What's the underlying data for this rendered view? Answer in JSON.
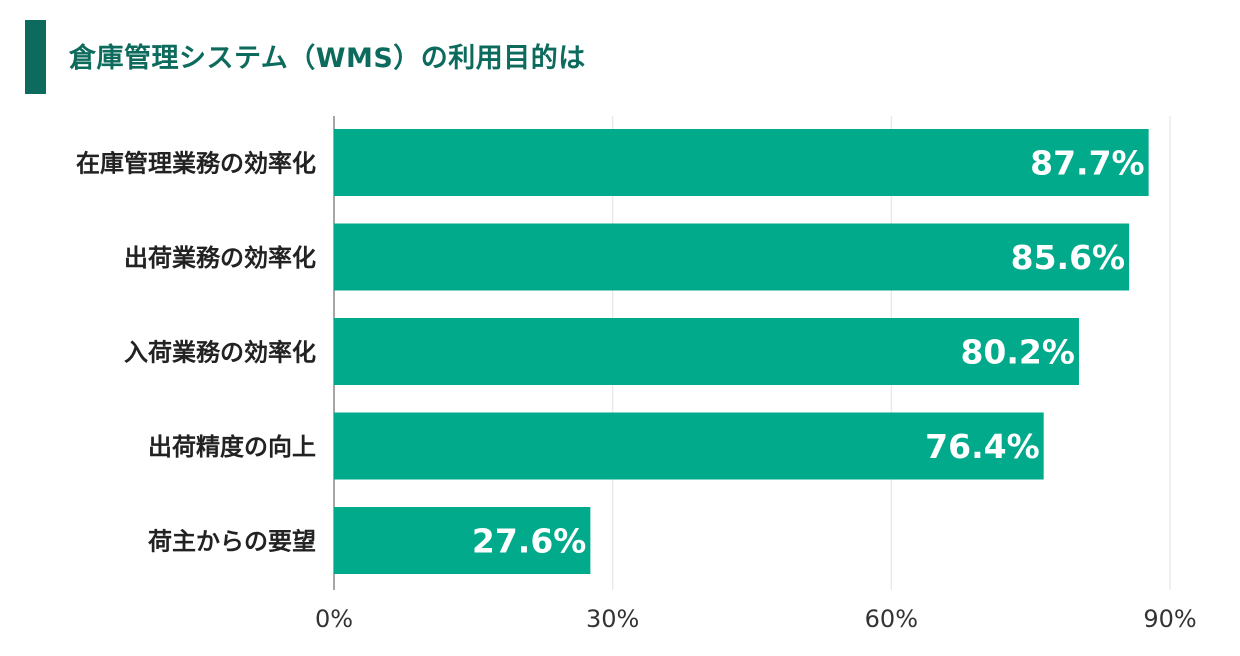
{
  "title": "倉庫管理システム（WMS）の利用目的は",
  "colors": {
    "title_bar": "#0d6b5e",
    "title_text": "#0d6b5e",
    "bar": "#00aa8a",
    "grid": "#e6e6e6",
    "axis": "#888888"
  },
  "chart_data": {
    "type": "bar",
    "orientation": "horizontal",
    "categories": [
      "在庫管理業務の効率化",
      "出荷業務の効率化",
      "入荷業務の効率化",
      "出荷精度の向上",
      "荷主からの要望"
    ],
    "values": [
      87.7,
      85.6,
      80.2,
      76.4,
      27.6
    ],
    "value_labels": [
      "87.7%",
      "85.6%",
      "80.2%",
      "76.4%",
      "27.6%"
    ],
    "xlim": [
      0,
      90
    ],
    "xticks": [
      0,
      30,
      60,
      90
    ],
    "xtick_labels": [
      "0%",
      "30%",
      "60%",
      "90%"
    ],
    "grid": true,
    "legend": "none"
  }
}
